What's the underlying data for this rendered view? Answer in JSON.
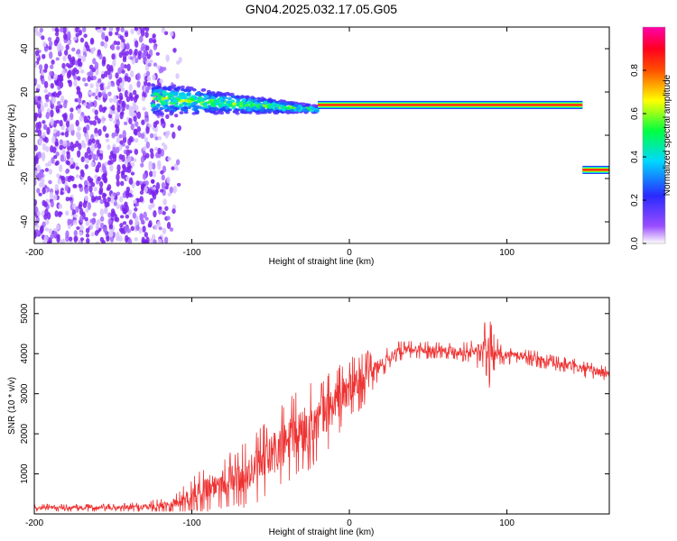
{
  "chart_data": [
    {
      "type": "heatmap",
      "title": "GN04.2025.032.17.05.G05",
      "xlabel": "Height of straight line (km)",
      "ylabel": "Frequency (Hz)",
      "xlim": [
        -200,
        165
      ],
      "ylim": [
        -50,
        50
      ],
      "xticks": [
        -200,
        -100,
        0,
        100
      ],
      "yticks": [
        -40,
        -20,
        0,
        20,
        40
      ],
      "colorbar": {
        "label": "Normalized spectral amplitude",
        "range": [
          0,
          1
        ],
        "ticks": [
          "0.0",
          "0.2",
          "0.4",
          "0.6",
          "0.8"
        ],
        "colormap": "rainbow (violet-blue-cyan-green-yellow-red-magenta)"
      },
      "features": [
        {
          "name": "",
          "x_range": [
            -200,
            -105
          ],
          "y_range": [
            -50,
            50
          ],
          "amplitude": 0.05,
          "description_of_pattern": "scattered noise"
        },
        {
          "name": "",
          "x_range": [
            -125,
            -20
          ],
          "freq_start": 17,
          "freq_end": 12,
          "amplitude": 0.4
        },
        {
          "name": "",
          "x_range": [
            -20,
            148
          ],
          "freq": 14,
          "amplitude": 0.9
        },
        {
          "name": "",
          "x_range": [
            148,
            165
          ],
          "freq": -16,
          "amplitude": 0.9
        }
      ]
    },
    {
      "type": "line",
      "xlabel": "Height of straight line (km)",
      "ylabel": "SNR (10 * v/v)",
      "xlim": [
        -200,
        165
      ],
      "ylim": [
        0,
        5400
      ],
      "xticks": [
        -200,
        -100,
        0,
        100
      ],
      "yticks": [
        1000,
        2000,
        3000,
        4000,
        5000
      ],
      "color": "#ee3333",
      "series": [
        {
          "name": "",
          "x": [
            -200,
            -180,
            -160,
            -140,
            -120,
            -110,
            -100,
            -90,
            -80,
            -70,
            -60,
            -50,
            -40,
            -30,
            -20,
            -10,
            0,
            10,
            20,
            30,
            40,
            50,
            60,
            70,
            80,
            85,
            88,
            90,
            95,
            100,
            110,
            120,
            130,
            140,
            150,
            165
          ],
          "y": [
            150,
            150,
            150,
            160,
            200,
            280,
            450,
            650,
            800,
            900,
            1100,
            1450,
            1750,
            2050,
            2300,
            2750,
            3100,
            3400,
            3700,
            4050,
            4100,
            4100,
            4100,
            4050,
            4050,
            4000,
            3900,
            4100,
            4000,
            3950,
            3950,
            3850,
            3750,
            3700,
            3600,
            3500
          ],
          "noise_amplitude": [
            60,
            60,
            60,
            70,
            110,
            160,
            280,
            380,
            420,
            480,
            560,
            620,
            700,
            720,
            650,
            600,
            500,
            420,
            220,
            160,
            140,
            140,
            140,
            140,
            200,
            500,
            700,
            400,
            180,
            140,
            130,
            130,
            130,
            130,
            130,
            130
          ]
        }
      ]
    }
  ]
}
